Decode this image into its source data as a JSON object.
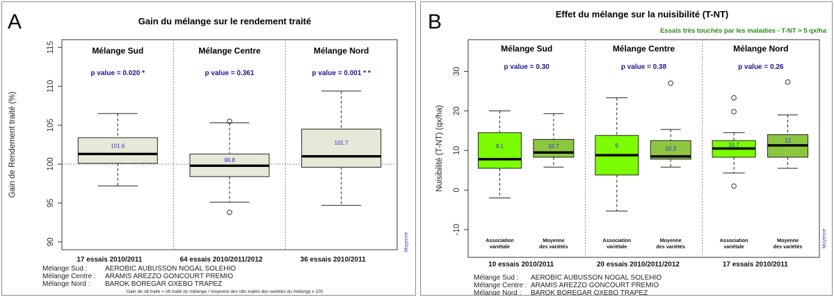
{
  "panel_a": {
    "letter": "A",
    "footnote": "Gain de rdt traité = rdt traité du mélange / moyenne des rdts traités des variétés du mélange x 100",
    "legend_lines": [
      {
        "label": "Mélange Sud :",
        "value": "AEROBIC AUBUSSON NOGAL SOLEHIO"
      },
      {
        "label": "Mélange Centre :",
        "value": "ARAMIS AREZZO GONCOURT PREMIO"
      },
      {
        "label": "Mélange Nord :",
        "value": "BAROK BOREGAR OXEBO TRAPEZ"
      }
    ]
  },
  "panel_b": {
    "letter": "B",
    "legend_lines": [
      {
        "label": "Mélange Sud :",
        "value": "AEROBIC AUBUSSON NOGAL SOLEHIO"
      },
      {
        "label": "Mélange Centre :",
        "value": "ARAMIS AREZZO GONCOURT PREMIO"
      },
      {
        "label": "Mélange Nord :",
        "value": "BAROK BOREGAR OXEBO TRAPEZ"
      }
    ]
  },
  "chart_data": [
    {
      "type": "boxplot",
      "title": "Gain du mélange sur le rendement traité",
      "ylabel": "Gain de Rendement traité (%)",
      "ylim": [
        89,
        116
      ],
      "yticks": [
        90,
        95,
        100,
        105,
        110,
        115
      ],
      "reference_line": 100,
      "side_note": "Moyenne",
      "fill_color": "#e8e8d8",
      "groups": [
        {
          "name": "Mélange Sud",
          "p_value": "p value = 0.020 *",
          "essais": "17 essais 2010/2011",
          "boxes": [
            {
              "min": 97.2,
              "q1": 100.1,
              "median": 101.3,
              "q3": 103.4,
              "max": 106.5,
              "mean_label": "101.6",
              "outliers": []
            }
          ]
        },
        {
          "name": "Mélange Centre",
          "p_value": "p value = 0.361",
          "essais": "64 essais 2010/2011/2012",
          "boxes": [
            {
              "min": 95.1,
              "q1": 98.4,
              "median": 99.8,
              "q3": 101.3,
              "max": 105.3,
              "mean_label": "99.8",
              "outliers": [
                105.5,
                93.8
              ]
            }
          ]
        },
        {
          "name": "Mélange Nord",
          "p_value": "p value = 0.001 * *",
          "essais": "36 essais 2010/2011",
          "boxes": [
            {
              "min": 94.7,
              "q1": 99.6,
              "median": 101.0,
              "q3": 104.5,
              "max": 109.4,
              "mean_label": "101.7",
              "outliers": []
            }
          ]
        }
      ]
    },
    {
      "type": "boxplot",
      "title": "Effet du mélange sur la nuisibilité (T-NT)",
      "subtitle": "Essais très touchés par les maladies - T-NT > 5 qx/ha",
      "ylabel": "Nuisibilité (T-NT) (qx/ha)",
      "ylim": [
        -17,
        38
      ],
      "yticks": [
        -10,
        0,
        10,
        20,
        30
      ],
      "side_note": "Moyenne",
      "colors": {
        "association": "#7cfc00",
        "moyenne": "#8cc63f"
      },
      "categories": [
        "Association\nvariétale",
        "Moyenne\ndes variétés"
      ],
      "groups": [
        {
          "name": "Mélange Sud",
          "p_value": "p value = 0.30",
          "essais": "10 essais 2010/2011",
          "boxes": [
            {
              "min": -2.0,
              "q1": 5.5,
              "median": 7.8,
              "q3": 14.5,
              "max": 20.0,
              "mean_label": "9.1",
              "outliers": []
            },
            {
              "min": 5.8,
              "q1": 8.3,
              "median": 9.5,
              "q3": 12.8,
              "max": 19.3,
              "mean_label": "10.7",
              "outliers": []
            }
          ]
        },
        {
          "name": "Mélange Centre",
          "p_value": "p value = 0.38",
          "essais": "20 essais 2010/2011/2012",
          "boxes": [
            {
              "min": -5.3,
              "q1": 3.8,
              "median": 8.8,
              "q3": 13.8,
              "max": 23.3,
              "mean_label": "9",
              "outliers": []
            },
            {
              "min": 5.8,
              "q1": 7.8,
              "median": 8.5,
              "q3": 12.5,
              "max": 15.3,
              "mean_label": "10.3",
              "outliers": [
                27.0
              ]
            }
          ]
        },
        {
          "name": "Mélange Nord",
          "p_value": "p value = 0.26",
          "essais": "17 essais 2010/2011",
          "boxes": [
            {
              "min": 4.3,
              "q1": 8.3,
              "median": 10.5,
              "q3": 12.5,
              "max": 14.5,
              "mean_label": "10.7",
              "outliers": [
                23.3,
                19.8,
                1.0
              ]
            },
            {
              "min": 5.5,
              "q1": 8.3,
              "median": 11.3,
              "q3": 14.0,
              "max": 19.0,
              "mean_label": "12",
              "outliers": [
                27.3
              ]
            }
          ]
        }
      ]
    }
  ]
}
